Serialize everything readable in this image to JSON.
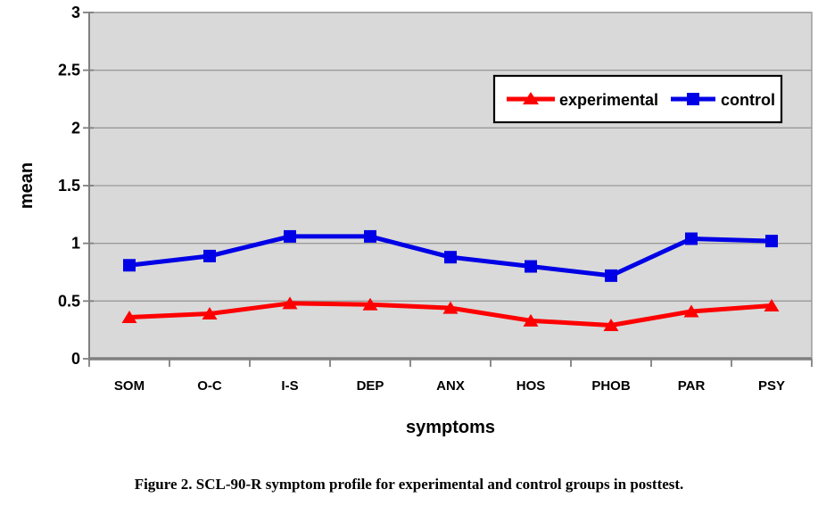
{
  "figure": {
    "caption": "Figure 2. SCL-90-R symptom profile for experimental and control groups in posttest."
  },
  "chart_data": {
    "type": "line",
    "title": "",
    "xlabel": "symptoms",
    "ylabel": "mean",
    "categories": [
      "SOM",
      "O-C",
      "I-S",
      "DEP",
      "ANX",
      "HOS",
      "PHOB",
      "PAR",
      "PSY"
    ],
    "series": [
      {
        "name": "experimental",
        "marker": "triangle",
        "color": "#ff0000",
        "values": [
          0.36,
          0.39,
          0.48,
          0.47,
          0.44,
          0.33,
          0.29,
          0.41,
          0.46
        ]
      },
      {
        "name": "control",
        "marker": "square",
        "color": "#0000e6",
        "values": [
          0.81,
          0.89,
          1.06,
          1.06,
          0.88,
          0.8,
          0.72,
          1.04,
          1.02
        ]
      }
    ],
    "ylim": [
      0,
      3
    ],
    "y_ticks": [
      0,
      0.5,
      1,
      1.5,
      2,
      2.5,
      3
    ],
    "grid": true,
    "legend_position": "inside-top-right",
    "colors": {
      "plot_background": "#d9d9d9",
      "gridline": "#9a9a9a",
      "axis": "#7f7f7f",
      "plot_border": "#969696",
      "legend_border": "#000000",
      "legend_background": "#ffffff"
    }
  }
}
